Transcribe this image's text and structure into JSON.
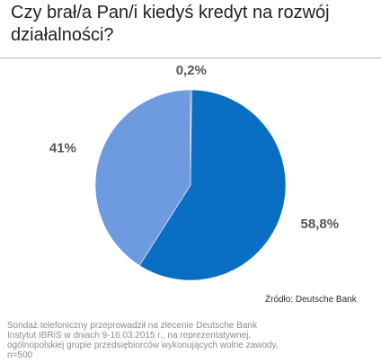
{
  "header": {
    "title": "Czy brał/a Pan/i kiedyś kredyt na rozwój działalności?"
  },
  "chart_data": {
    "type": "pie",
    "title": "Czy brał/a Pan/i kiedyś kredyt na rozwój działalności?",
    "slices": [
      {
        "label": "0,2%",
        "value": 0.2,
        "color": "#3f3f3f"
      },
      {
        "label": "58,8%",
        "value": 58.8,
        "color": "#0a6fc4"
      },
      {
        "label": "41%",
        "value": 41,
        "color": "#6e9be0"
      }
    ],
    "legend": "none"
  },
  "footer": {
    "source": "Źródło: Deutsche Bank",
    "note": "Sondaż telefoniczny przeprowadził na zlecenie Deutsche Bank Instytut IBRiS w dniach 9-16.03.2015 r., na reprezentatywnej, ogólnopolskiej grupie przedsiębiorców wykonujących wolne zawody, n=500"
  }
}
